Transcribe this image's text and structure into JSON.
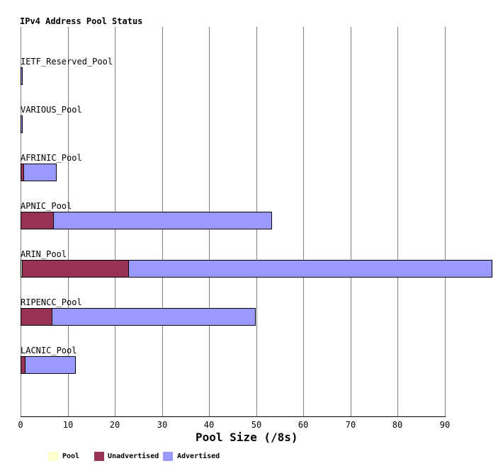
{
  "chart_data": {
    "type": "bar",
    "orientation": "horizontal",
    "title": "IPv4 Address Pool Status",
    "xlabel": "Pool Size (/8s)",
    "xlim": [
      0,
      100
    ],
    "xticks": [
      0,
      10,
      20,
      30,
      40,
      50,
      60,
      70,
      80,
      90
    ],
    "grid": "vertical-only",
    "legend_position": "bottom",
    "categories": [
      "IETF_Reserved_Pool",
      "VARIOUS_Pool",
      "AFRINIC_Pool",
      "APNIC_Pool",
      "ARIN_Pool",
      "RIPENCC_Pool",
      "LACNIC_Pool"
    ],
    "series": [
      {
        "name": "Pool",
        "color": "#FFFFCC",
        "values": [
          0,
          0,
          0,
          0,
          0.2,
          0,
          0
        ]
      },
      {
        "name": "Unadvertised",
        "color": "#993355",
        "values": [
          0,
          0,
          0.4,
          6.7,
          22.4,
          6.5,
          0.7
        ]
      },
      {
        "name": "Advertised",
        "color": "#9999FF",
        "values": [
          0.1,
          0.1,
          6.8,
          46.2,
          76.9,
          42.9,
          10.5
        ]
      }
    ],
    "totals": [
      0.1,
      0.1,
      7.2,
      52.9,
      99.5,
      49.4,
      11.2
    ],
    "legend": [
      {
        "label": "Pool",
        "color": "#FFFFCC"
      },
      {
        "label": "Unadvertised",
        "color": "#993355"
      },
      {
        "label": "Advertised",
        "color": "#9999FF"
      }
    ],
    "colors": {
      "gridline": "#808080",
      "axis": "#000000",
      "bar_outline": "#000000",
      "background": "#FFFFFF",
      "text": "#000000"
    }
  }
}
